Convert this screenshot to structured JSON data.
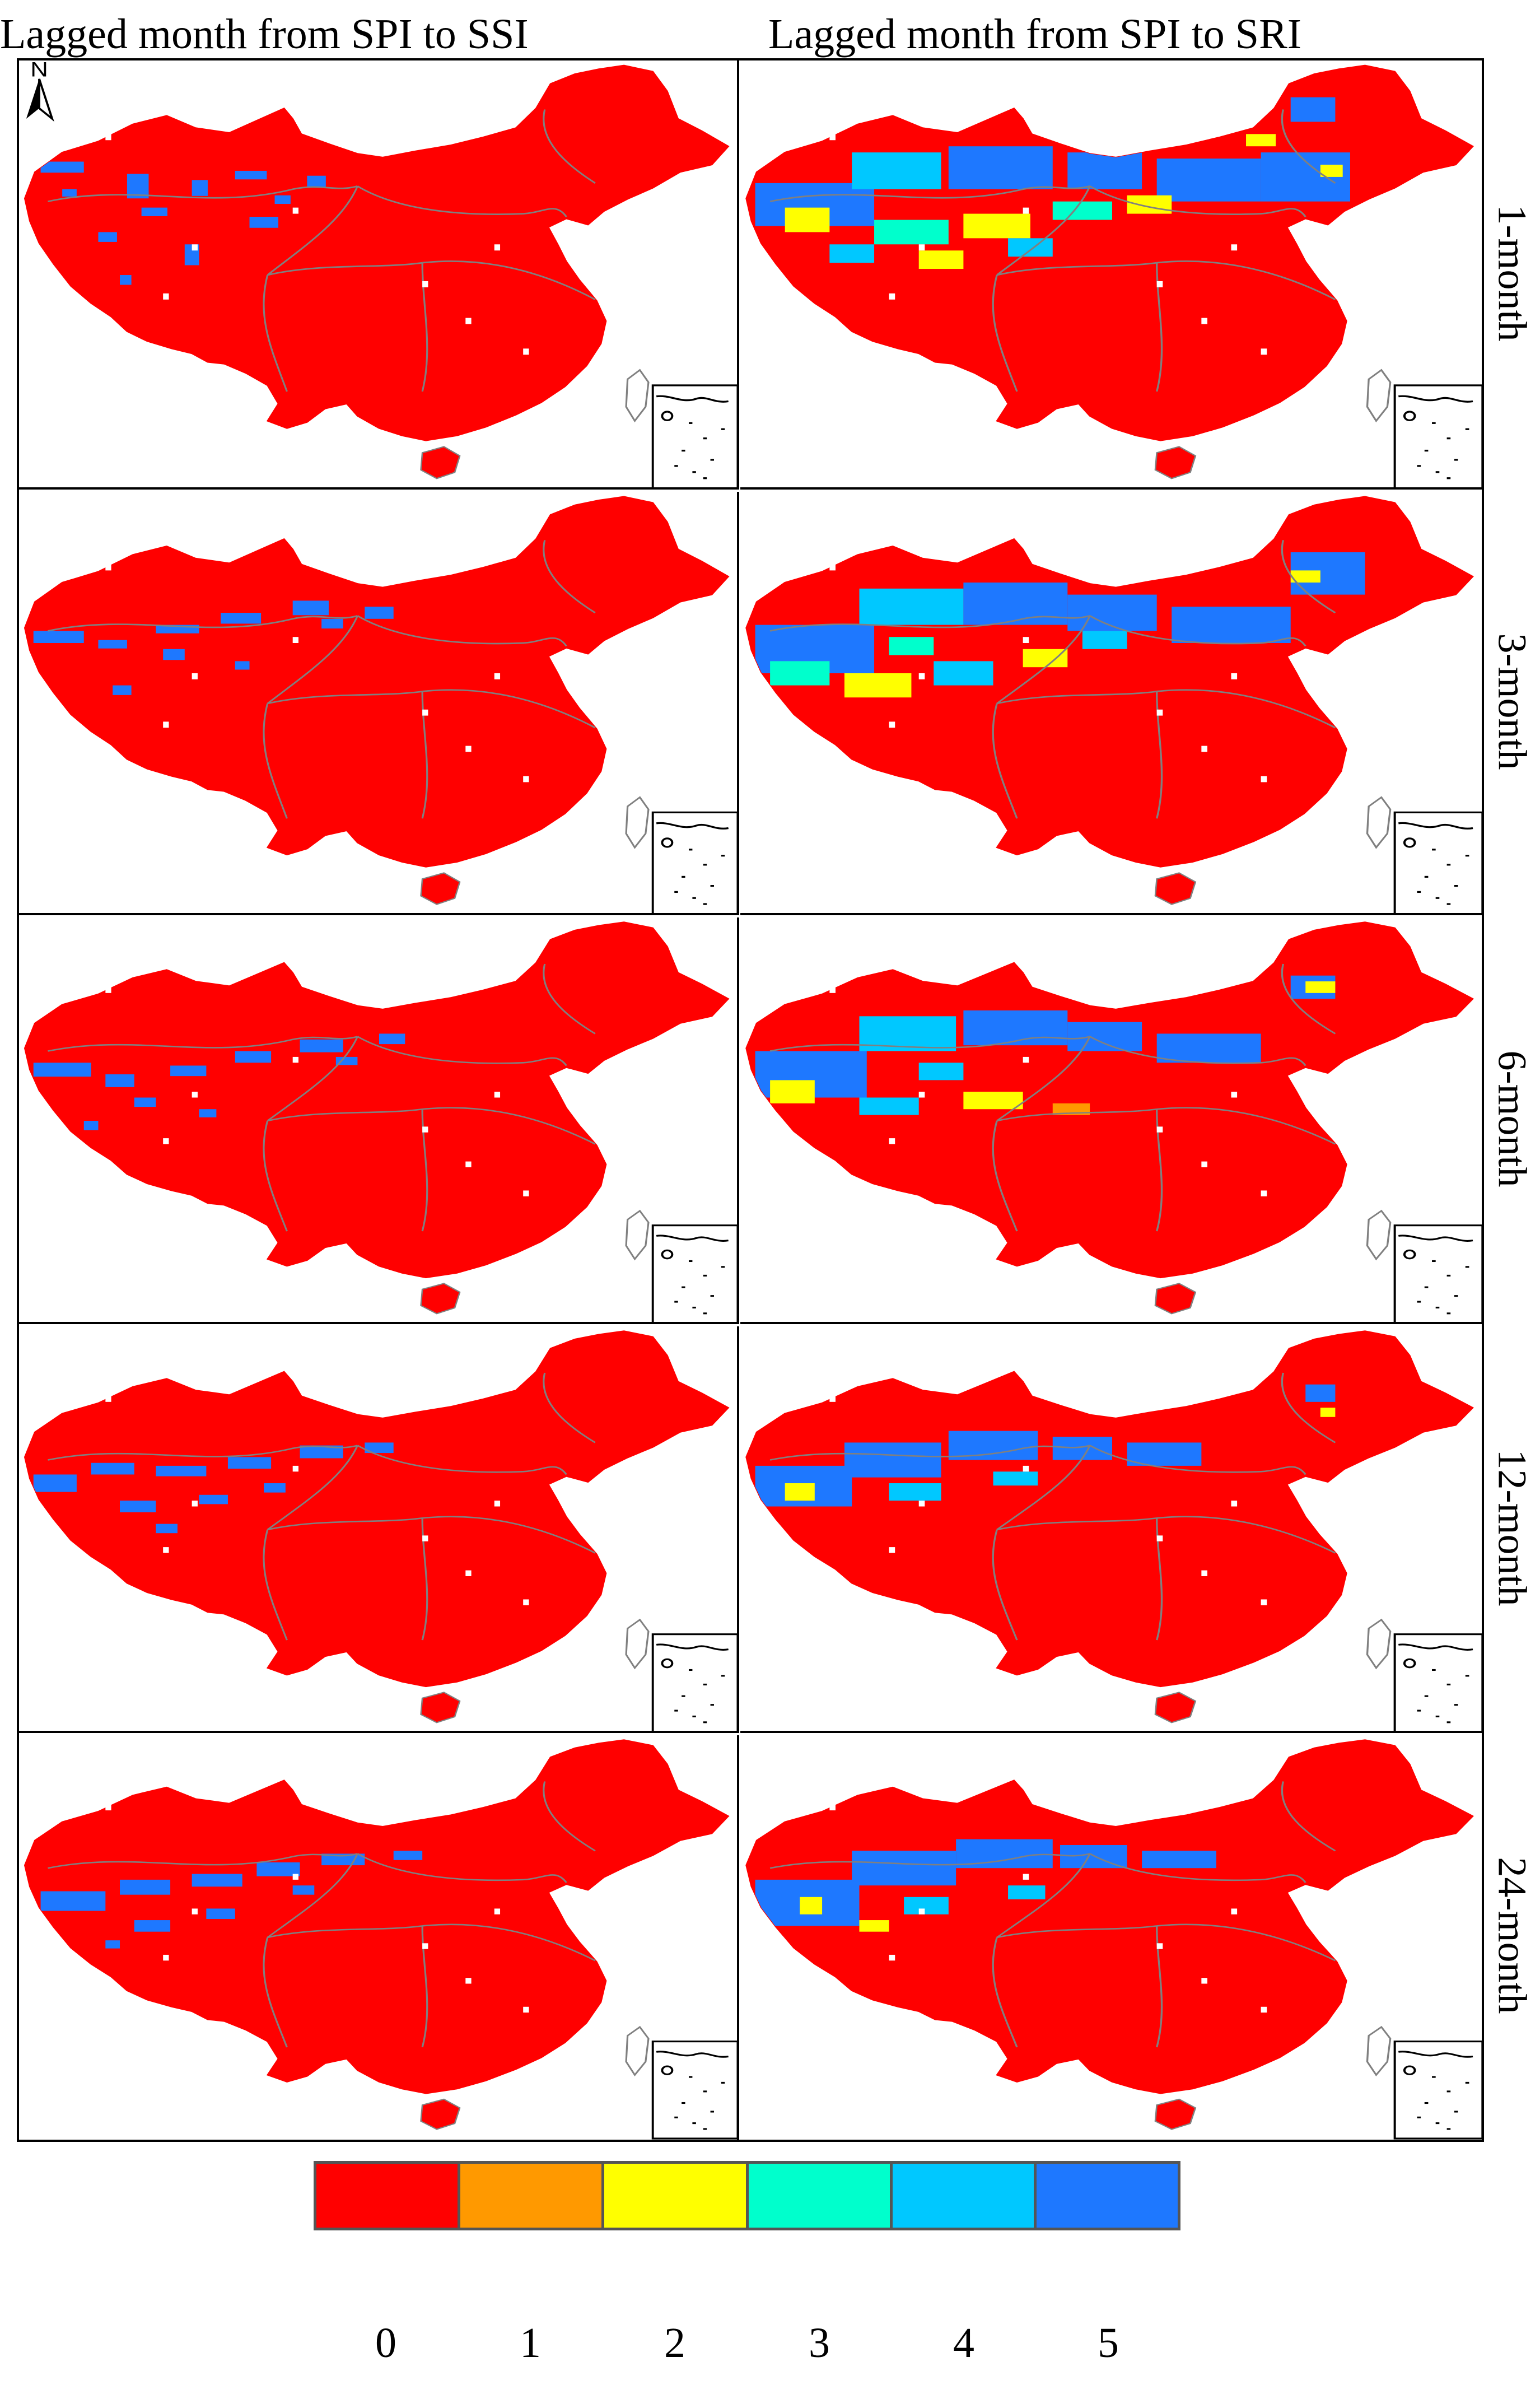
{
  "titles": {
    "left": "Lagged month from SPI to SSI",
    "right": "Lagged month from SPI to SRI"
  },
  "north_label": "N",
  "rows": [
    {
      "label": "1-month"
    },
    {
      "label": "3-month"
    },
    {
      "label": "6-month"
    },
    {
      "label": "12-month"
    },
    {
      "label": "24-month"
    }
  ],
  "legend": {
    "items": [
      {
        "value": "0",
        "color": "#ff0000"
      },
      {
        "value": "1",
        "color": "#ff9900"
      },
      {
        "value": "2",
        "color": "#ffff00"
      },
      {
        "value": "3",
        "color": "#00ffcc"
      },
      {
        "value": "4",
        "color": "#00c8ff"
      },
      {
        "value": "5",
        "color": "#1e78ff"
      }
    ]
  },
  "colors": {
    "lag0": "#ff0000",
    "lag1": "#ff9900",
    "lag2": "#ffff00",
    "lag3": "#00ffcc",
    "lag4": "#00c8ff",
    "lag5": "#1e78ff",
    "boundary": "#808080"
  }
}
